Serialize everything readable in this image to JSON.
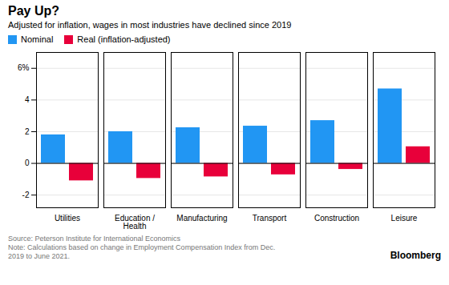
{
  "chart_data": {
    "type": "bar",
    "title": "Pay Up?",
    "subtitle": "Adjusted for inflation, wages in most industries have declined since 2019",
    "categories": [
      "Utilities",
      "Education /\nHealth",
      "Manufacturing",
      "Transport",
      "Construction",
      "Leisure"
    ],
    "series": [
      {
        "name": "Nominal",
        "color": "#2196F3",
        "values": [
          1.8,
          2.0,
          2.25,
          2.35,
          2.7,
          4.7
        ]
      },
      {
        "name": "Real (inflation-adjusted)",
        "color": "#E8003A",
        "values": [
          -1.1,
          -0.95,
          -0.85,
          -0.72,
          -0.38,
          1.05
        ]
      }
    ],
    "ylim": [
      -2.8,
      7.0
    ],
    "yticks": [
      -2,
      0,
      2,
      4,
      {
        "value": 6,
        "label": "6%"
      }
    ],
    "grid": true,
    "legend": "upper left",
    "annotations": [
      "Source: Peterson Institute for International Economics\nNote: Calculations based on change in Employment Compensation Index from Dec.\n2019 to June 2021.",
      "Bloomberg"
    ]
  }
}
